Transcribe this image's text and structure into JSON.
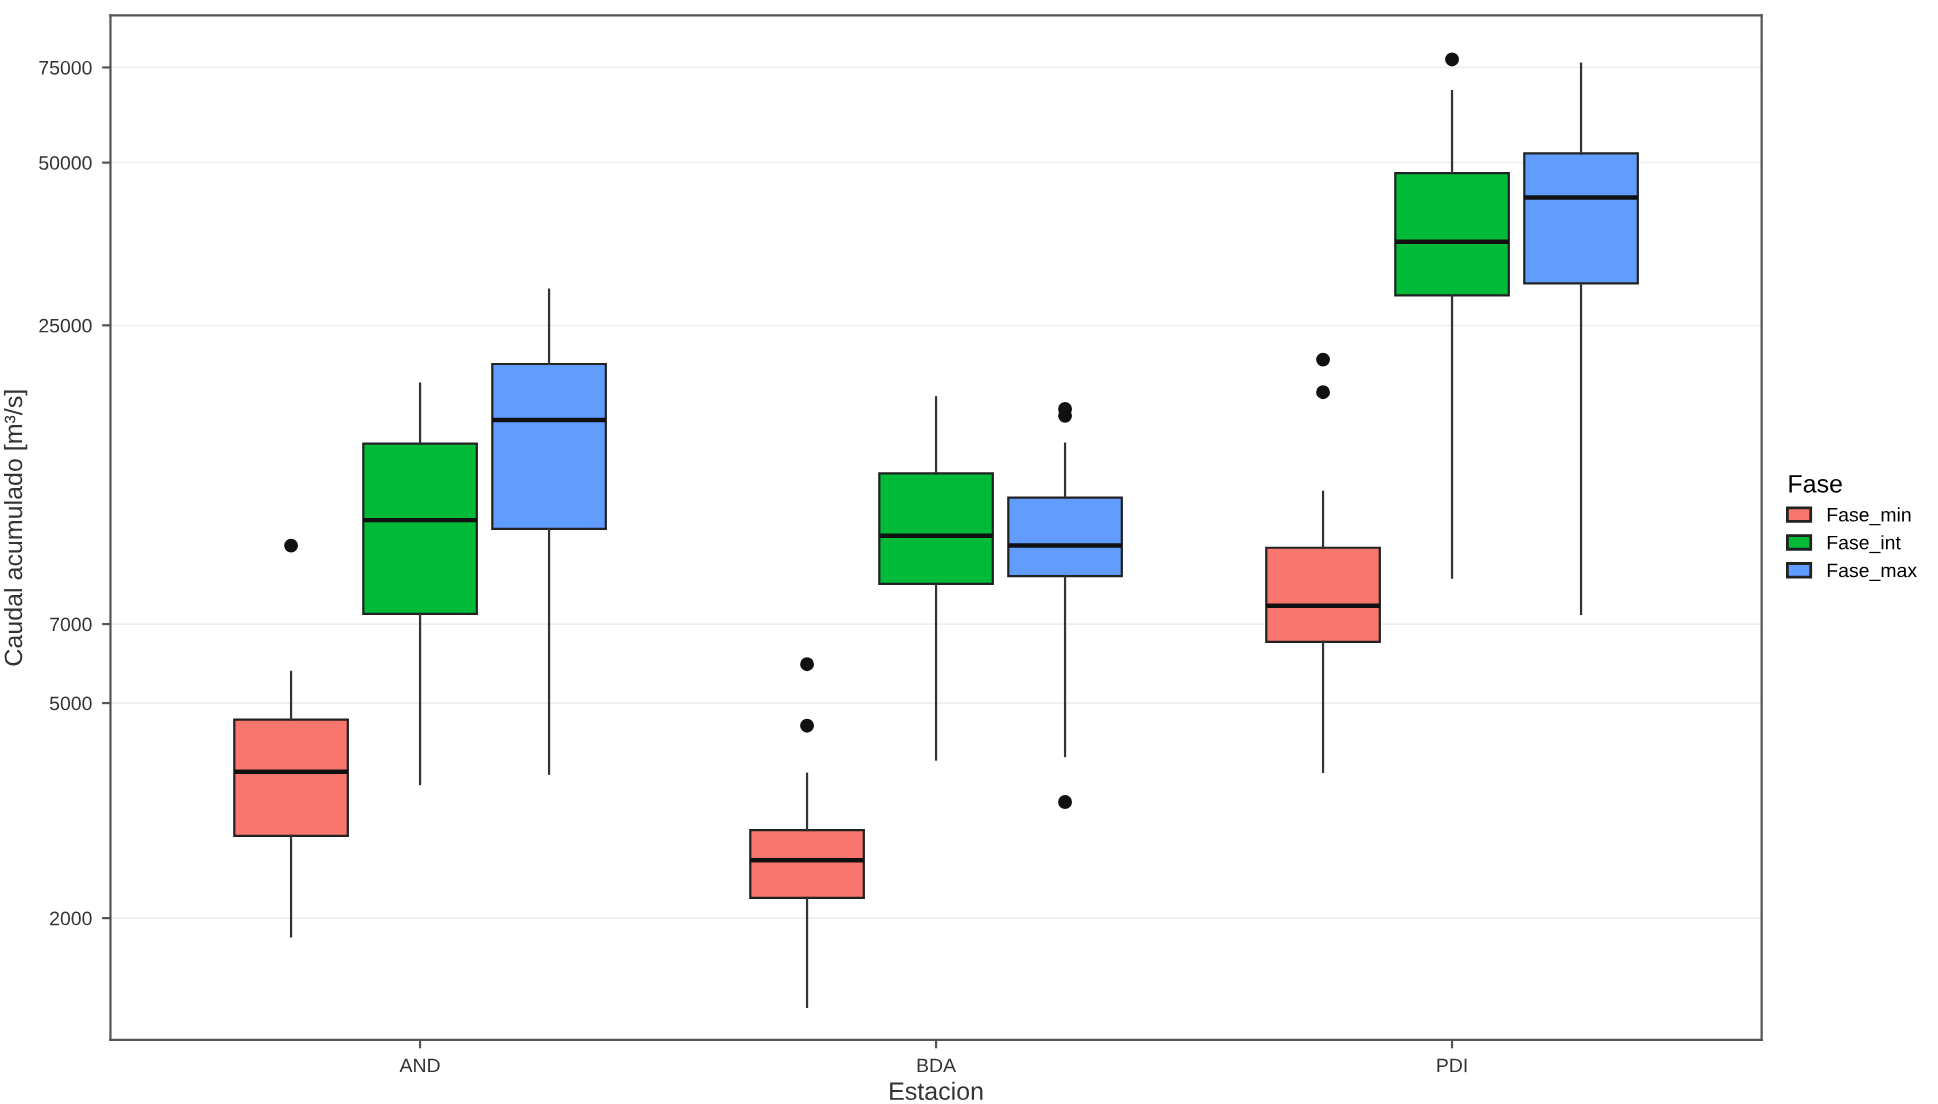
{
  "chart_data": {
    "type": "box",
    "xlabel": "Estacion",
    "ylabel": "Caudal acumulado [m³/s]",
    "legend_title": "Fase",
    "legend": "right",
    "grid": "y",
    "log": "y",
    "categories": [
      "AND",
      "BDA",
      "PDI"
    ],
    "ylim": [
      1190,
      93600
    ],
    "yticks": [
      2000,
      5000,
      7000,
      25000,
      50000,
      75000
    ],
    "series": [
      {
        "name": "Fase_min",
        "color": "#f8766d",
        "boxes": [
          {
            "low": 1850,
            "q1": 2840,
            "median": 3730,
            "q3": 4660,
            "high": 5710,
            "outliers": [
              9780
            ]
          },
          {
            "low": 1370,
            "q1": 2180,
            "median": 2560,
            "q3": 2910,
            "high": 3700,
            "outliers": [
              4540,
              5900
            ]
          },
          {
            "low": 3730,
            "q1": 6490,
            "median": 7570,
            "q3": 9690,
            "high": 12300,
            "outliers": [
              18800,
              21600
            ]
          }
        ]
      },
      {
        "name": "Fase_int",
        "color": "#00ba38",
        "boxes": [
          {
            "low": 3540,
            "q1": 7310,
            "median": 10900,
            "q3": 15100,
            "high": 19500
          },
          {
            "low": 3930,
            "q1": 8310,
            "median": 10200,
            "q3": 13300,
            "high": 18400
          },
          {
            "low": 8530,
            "q1": 28400,
            "median": 35700,
            "q3": 47800,
            "high": 67800,
            "outliers": [
              77600
            ]
          }
        ]
      },
      {
        "name": "Fase_max",
        "color": "#619cff",
        "boxes": [
          {
            "low": 3700,
            "q1": 10500,
            "median": 16700,
            "q3": 21200,
            "high": 29100
          },
          {
            "low": 3990,
            "q1": 8590,
            "median": 9780,
            "q3": 12000,
            "high": 15100,
            "outliers": [
              3280,
              17000,
              17500
            ]
          },
          {
            "low": 7310,
            "q1": 29900,
            "median": 43100,
            "q3": 52000,
            "high": 76200
          }
        ]
      }
    ]
  }
}
